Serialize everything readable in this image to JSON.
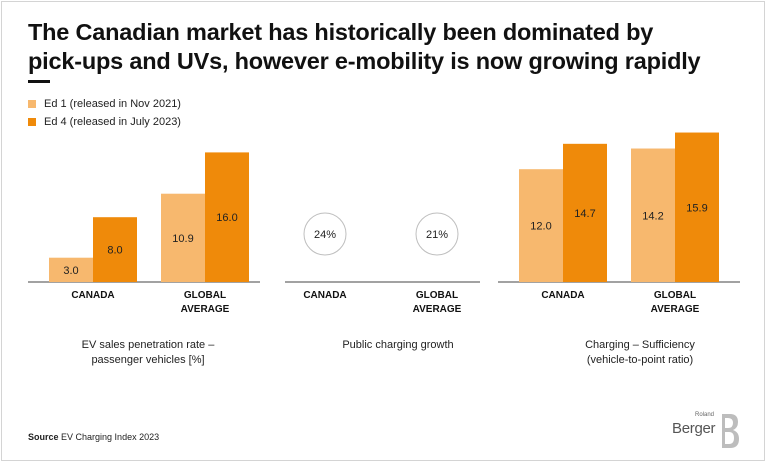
{
  "title_line1": "The Canadian market has historically been dominated by",
  "title_line2": "pick-ups and UVs, however e-mobility is now growing rapidly",
  "source_label": "Source",
  "source_text": "EV Charging Index 2023",
  "logo": {
    "small": "Roland",
    "word": "Berger"
  },
  "colors": {
    "ed1": "#f7b86e",
    "ed4": "#ef8a0a",
    "axis": "#444444",
    "circle": "#bfbfbf"
  },
  "chart_data": {
    "type": "bar",
    "legend": [
      "Ed 1 (released in Nov 2021)",
      "Ed 4 (released in July 2023)"
    ],
    "panels": [
      {
        "caption": [
          "EV sales penetration rate –",
          "passenger vehicles [%]"
        ],
        "categories": [
          [
            "CANADA"
          ],
          [
            "GLOBAL",
            "AVERAGE"
          ]
        ],
        "series": [
          {
            "name": "Ed 1 (released in Nov 2021)",
            "values": [
              3.0,
              10.9
            ],
            "labels": [
              "3.0",
              "10.9"
            ]
          },
          {
            "name": "Ed 4 (released in July 2023)",
            "values": [
              8.0,
              16.0
            ],
            "labels": [
              "8.0",
              "16.0"
            ]
          }
        ]
      },
      {
        "caption": [
          "Public charging growth"
        ],
        "categories": [
          [
            "CANADA"
          ],
          [
            "GLOBAL",
            "AVERAGE"
          ]
        ],
        "values": [
          24,
          21
        ],
        "labels": [
          "24%",
          "21%"
        ]
      },
      {
        "caption": [
          "Charging – Sufficiency",
          "(vehicle-to-point ratio)"
        ],
        "categories": [
          [
            "CANADA"
          ],
          [
            "GLOBAL",
            "AVERAGE"
          ]
        ],
        "series": [
          {
            "name": "Ed 1 (released in Nov 2021)",
            "values": [
              12.0,
              14.2
            ],
            "labels": [
              "12.0",
              "14.2"
            ]
          },
          {
            "name": "Ed 4 (released in July 2023)",
            "values": [
              14.7,
              15.9
            ],
            "labels": [
              "14.7",
              "15.9"
            ]
          }
        ]
      }
    ]
  }
}
